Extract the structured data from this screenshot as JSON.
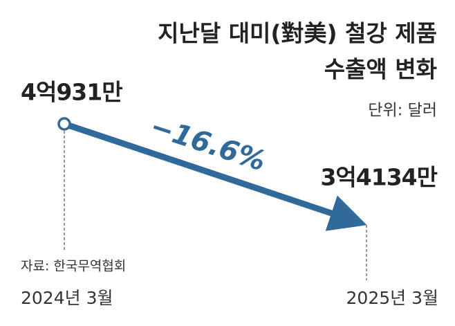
{
  "chart_data": {
    "type": "line",
    "title": [
      "지난달 대미(對美) 철강 제품",
      "수출액 변화"
    ],
    "unit": "단위: 달러",
    "source": "자료: 한국무역협회",
    "annotation": "−16.6%",
    "categories": [
      "2024년 3월",
      "2025년 3월"
    ],
    "series": [
      {
        "color": "#2f6a9a",
        "values": [
          409310000,
          341340000
        ],
        "value_labels": [
          "4억931만",
          "3억4134만"
        ]
      }
    ]
  }
}
